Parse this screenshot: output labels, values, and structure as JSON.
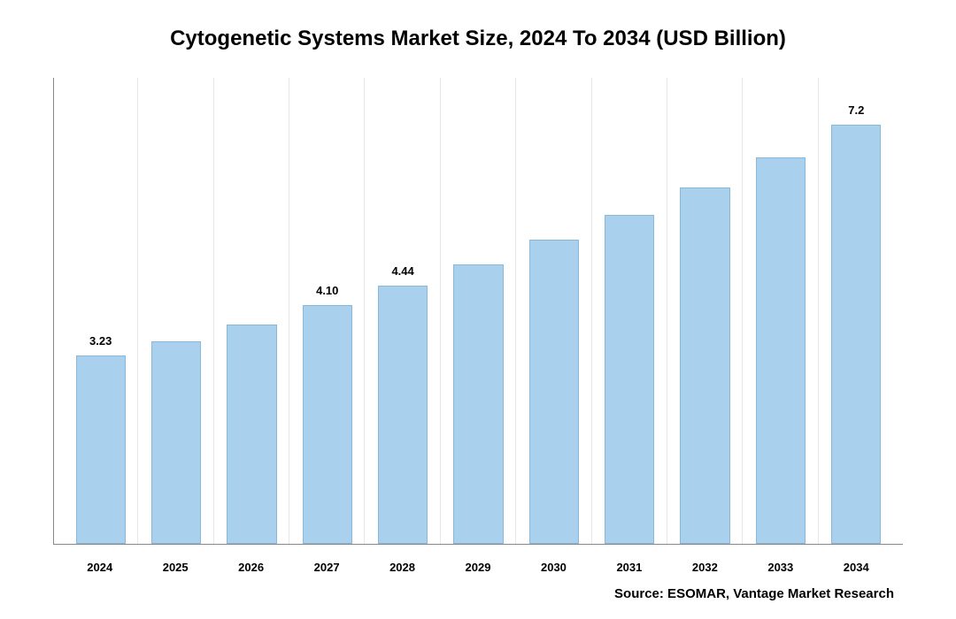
{
  "chart": {
    "type": "bar",
    "title": "Cytogenetic Systems Market Size, 2024 To 2034 (USD Billion)",
    "title_fontsize": 24,
    "categories": [
      "2024",
      "2025",
      "2026",
      "2027",
      "2028",
      "2029",
      "2030",
      "2031",
      "2032",
      "2033",
      "2034"
    ],
    "values": [
      3.23,
      3.48,
      3.77,
      4.1,
      4.44,
      4.8,
      5.22,
      5.65,
      6.12,
      6.63,
      7.2
    ],
    "value_labels_visible": [
      "3.23",
      "",
      "",
      "4.10",
      "4.44",
      "",
      "",
      "",
      "",
      "",
      "7.2"
    ],
    "bar_color": "#a9d1ed",
    "bar_border_color": "#89b8d8",
    "grid_color": "#e8e8e8",
    "axis_color": "#888888",
    "background_color": "#ffffff",
    "ylim": [
      0,
      8
    ],
    "bar_width": 0.66,
    "label_fontsize": 13,
    "label_fontweight": "bold",
    "source": "Source: ESOMAR, Vantage Market Research",
    "source_fontsize": 15
  }
}
